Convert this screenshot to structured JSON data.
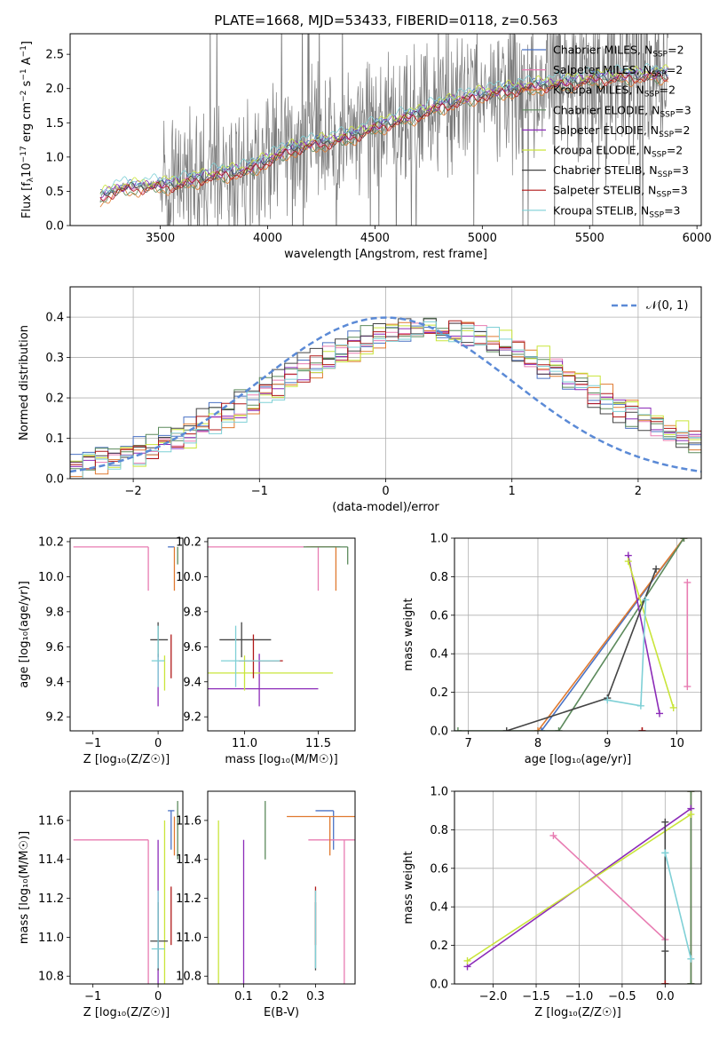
{
  "figure_title": "PLATE=1668, MJD=53433, FIBERID=0118, z=0.563",
  "colors": {
    "chabrier_miles": "#4a72c4",
    "salpeter_miles": "#e87cb2",
    "kroupa_miles": "#e07a30",
    "chabrier_elodie": "#5c8a5c",
    "salpeter_elodie": "#8c2bb8",
    "kroupa_elodie": "#c9e53a",
    "chabrier_stelib": "#444444",
    "salpeter_stelib": "#b01818",
    "kroupa_stelib": "#7fd0d6",
    "data": "#7a7a7a",
    "normal": "#5b8ad6"
  },
  "chart_data": [
    {
      "id": "spectrum",
      "type": "line",
      "title": "PLATE=1668, MJD=53433, FIBERID=0118, z=0.563",
      "xlabel": "wavelength [Angstrom, rest frame]",
      "ylabel_parts": [
        "Flux [f",
        "λ",
        "10",
        "−17",
        " erg cm",
        "−2",
        " s",
        "−1",
        " A",
        "−1",
        "]"
      ],
      "xlim": [
        3080,
        6020
      ],
      "ylim": [
        0,
        2.8
      ],
      "xticks": [
        3500,
        4000,
        4500,
        5000,
        5500,
        6000
      ],
      "xtick_labels": [
        "3500",
        "4000",
        "4500",
        "5000",
        "5500",
        "6000"
      ],
      "yticks": [
        0.0,
        0.5,
        1.0,
        1.5,
        2.0,
        2.5
      ],
      "ytick_labels": [
        "0.0",
        "0.5",
        "1.0",
        "1.5",
        "2.0",
        "2.5"
      ],
      "data_range": [
        3220,
        5870
      ],
      "continuum": [
        [
          3220,
          0.42
        ],
        [
          3300,
          0.55
        ],
        [
          3400,
          0.58
        ],
        [
          3500,
          0.6
        ],
        [
          3600,
          0.63
        ],
        [
          3700,
          0.72
        ],
        [
          3800,
          0.78
        ],
        [
          3900,
          0.82
        ],
        [
          4000,
          0.97
        ],
        [
          4100,
          1.12
        ],
        [
          4200,
          1.2
        ],
        [
          4300,
          1.25
        ],
        [
          4400,
          1.33
        ],
        [
          4500,
          1.45
        ],
        [
          4600,
          1.55
        ],
        [
          4700,
          1.64
        ],
        [
          4800,
          1.76
        ],
        [
          4900,
          1.85
        ],
        [
          5000,
          1.93
        ],
        [
          5100,
          1.98
        ],
        [
          5200,
          2.03
        ],
        [
          5300,
          2.07
        ],
        [
          5400,
          2.1
        ],
        [
          5500,
          2.15
        ],
        [
          5600,
          2.18
        ],
        [
          5700,
          2.2
        ],
        [
          5870,
          2.22
        ]
      ],
      "legend_position": "upper right",
      "series": [
        {
          "name": "Chabrier MILES, N",
          "sub": "SSP",
          "suffix": "=2",
          "color_key": "chabrier_miles",
          "offset": 0.02
        },
        {
          "name": "Salpeter MILES, N",
          "sub": "SSP",
          "suffix": "=2",
          "color_key": "salpeter_miles",
          "offset": -0.03
        },
        {
          "name": "Kroupa MILES, N",
          "sub": "SSP",
          "suffix": "=2",
          "color_key": "kroupa_miles",
          "offset": -0.09
        },
        {
          "name": "Chabrier ELODIE, N",
          "sub": "SSP",
          "suffix": "=3",
          "color_key": "chabrier_elodie",
          "offset": -0.06
        },
        {
          "name": "Salpeter ELODIE, N",
          "sub": "SSP",
          "suffix": "=2",
          "color_key": "salpeter_elodie",
          "offset": 0.01
        },
        {
          "name": "Kroupa ELODIE, N",
          "sub": "SSP",
          "suffix": "=2",
          "color_key": "kroupa_elodie",
          "offset": 0.05
        },
        {
          "name": "Chabrier STELIB, N",
          "sub": "SSP",
          "suffix": "=3",
          "color_key": "chabrier_stelib",
          "offset": -0.02
        },
        {
          "name": "Salpeter STELIB, N",
          "sub": "SSP",
          "suffix": "=3",
          "color_key": "salpeter_stelib",
          "offset": -0.05
        },
        {
          "name": "Kroupa STELIB, N",
          "sub": "SSP",
          "suffix": "=3",
          "color_key": "kroupa_stelib",
          "offset": 0.08
        }
      ]
    },
    {
      "id": "residuals",
      "type": "histogram",
      "xlabel": "(data-model)/error",
      "ylabel": "Normed distribution",
      "xlim": [
        -2.5,
        2.5
      ],
      "ylim": [
        0,
        0.475
      ],
      "xticks": [
        -2,
        -1,
        0,
        1,
        2
      ],
      "xtick_labels": [
        "−2",
        "−1",
        "0",
        "1",
        "2"
      ],
      "yticks": [
        0.0,
        0.1,
        0.2,
        0.3,
        0.4
      ],
      "ytick_labels": [
        "0.0",
        "0.1",
        "0.2",
        "0.3",
        "0.4"
      ],
      "bin_width": 0.1,
      "bin_start": -2.5,
      "reference_label": "𝒩(0, 1)",
      "hist_center": 0.35,
      "hist_sigma": 1.25,
      "hist_amp": 0.37,
      "grid": true
    },
    {
      "id": "age_Z",
      "type": "scatter",
      "xlabel": "Z [log₁₀(Z/Z☉)]",
      "ylabel": "age  [log₁₀(age/yr)]",
      "xlim": [
        -1.35,
        0.38
      ],
      "ylim": [
        9.12,
        10.22
      ],
      "xticks": [
        -1,
        0
      ],
      "xtick_labels": [
        "−1",
        "0"
      ],
      "yticks": [
        9.2,
        9.4,
        9.6,
        9.8,
        10.0,
        10.2
      ],
      "ytick_labels": [
        "9.2",
        "9.4",
        "9.6",
        "9.8",
        "10.0",
        "10.2"
      ]
    },
    {
      "id": "age_mass",
      "type": "scatter",
      "xlabel": "mass [log₁₀(M/M☉)]",
      "xlim": [
        10.75,
        11.75
      ],
      "ylim": [
        9.12,
        10.22
      ],
      "xticks": [
        11.0,
        11.5
      ],
      "xtick_labels": [
        "11.0",
        "11.5"
      ],
      "yticks": [
        9.2,
        9.4,
        9.6,
        9.8,
        10.0,
        10.2
      ],
      "ytick_labels": [
        "9.2",
        "9.4",
        "9.6",
        "9.8",
        "10.0",
        "10.2"
      ]
    },
    {
      "id": "weight_age",
      "type": "line",
      "xlabel": "age  [log₁₀(age/yr)]",
      "ylabel": "mass weight",
      "xlim": [
        6.8,
        10.35
      ],
      "ylim": [
        0,
        1.0
      ],
      "xticks": [
        7,
        8,
        9,
        10
      ],
      "xtick_labels": [
        "7",
        "8",
        "9",
        "10"
      ],
      "yticks": [
        0.0,
        0.2,
        0.4,
        0.6,
        0.8,
        1.0
      ],
      "ytick_labels": [
        "0.0",
        "0.2",
        "0.4",
        "0.6",
        "0.8",
        "1.0"
      ],
      "grid": true
    },
    {
      "id": "mass_Z",
      "type": "scatter",
      "xlabel": "Z [log₁₀(Z/Z☉)]",
      "ylabel": "mass [log₁₀(M/M☉)]",
      "xlim": [
        -1.35,
        0.38
      ],
      "ylim": [
        10.76,
        11.75
      ],
      "xticks": [
        -1,
        0
      ],
      "xtick_labels": [
        "−1",
        "0"
      ],
      "yticks": [
        10.8,
        11.0,
        11.2,
        11.4,
        11.6
      ],
      "ytick_labels": [
        "10.8",
        "11.0",
        "11.2",
        "11.4",
        "11.6"
      ]
    },
    {
      "id": "mass_ebv",
      "type": "scatter",
      "xlabel": "E(B-V)",
      "xlim": [
        0.0,
        0.41
      ],
      "ylim": [
        10.76,
        11.75
      ],
      "xticks": [
        0.1,
        0.2,
        0.3
      ],
      "xtick_labels": [
        "0.1",
        "0.2",
        "0.3"
      ],
      "yticks": [
        10.8,
        11.0,
        11.2,
        11.4,
        11.6
      ],
      "ytick_labels": [
        "10.8",
        "11.0",
        "11.2",
        "11.4",
        "11.6"
      ]
    },
    {
      "id": "weight_Z",
      "type": "line",
      "xlabel": "Z [log₁₀(Z/Z☉)]",
      "ylabel": "mass weight",
      "xlim": [
        -2.45,
        0.42
      ],
      "ylim": [
        0,
        1.0
      ],
      "xticks": [
        -2.0,
        -1.5,
        -1.0,
        -0.5,
        0.0
      ],
      "xtick_labels": [
        "−2.0",
        "−1.5",
        "−1.0",
        "−0.5",
        "0.0"
      ],
      "yticks": [
        0.0,
        0.2,
        0.4,
        0.6,
        0.8,
        1.0
      ],
      "ytick_labels": [
        "0.0",
        "0.2",
        "0.4",
        "0.6",
        "0.8",
        "1.0"
      ],
      "grid": true
    }
  ],
  "fits": [
    {
      "color_key": "chabrier_miles",
      "Z": 0.2,
      "Zerr": [
        0.05,
        0.05
      ],
      "age": 10.17,
      "ageErr": [
        0.0,
        0.0
      ],
      "mass": 11.65,
      "massErr": [
        0.2,
        0.0
      ],
      "ebv": 0.35,
      "ebvErr": [
        0.05,
        0.0
      ],
      "ssp_age": [
        8.05,
        10.1
      ],
      "ssp_w": [
        0.0,
        1.0
      ],
      "ssp_Z": [
        0.3,
        0.3
      ],
      "ssp_zw": [
        0.0,
        1.0
      ]
    },
    {
      "color_key": "salpeter_miles",
      "Z": -0.15,
      "Zerr": [
        1.15,
        0.0
      ],
      "age": 10.17,
      "ageErr": [
        0.25,
        0.0
      ],
      "mass": 11.5,
      "massErr": [
        1.2,
        0.0
      ],
      "ebv": 0.38,
      "ebvErr": [
        0.1,
        0.1
      ],
      "ssp_age": [
        10.15,
        10.15
      ],
      "ssp_w": [
        0.23,
        0.77
      ],
      "ssp_Z": [
        -1.3,
        0.0
      ],
      "ssp_zw": [
        0.77,
        0.23
      ]
    },
    {
      "color_key": "kroupa_miles",
      "Z": 0.25,
      "Zerr": [
        0.0,
        0.0
      ],
      "age": 10.17,
      "ageErr": [
        0.25,
        0.0
      ],
      "mass": 11.62,
      "massErr": [
        0.2,
        0.0
      ],
      "ebv": 0.34,
      "ebvErr": [
        0.12,
        0.08
      ],
      "ssp_age": [
        8.0,
        10.1
      ],
      "ssp_w": [
        0.0,
        1.0
      ],
      "ssp_Z": [
        0.3,
        0.3
      ],
      "ssp_zw": [
        0.0,
        1.0
      ]
    },
    {
      "color_key": "chabrier_elodie",
      "Z": 0.3,
      "Zerr": [
        0.0,
        0.0
      ],
      "age": 10.17,
      "ageErr": [
        0.1,
        0.0
      ],
      "mass": 11.7,
      "massErr": [
        0.3,
        0.0
      ],
      "ebv": 0.16,
      "ebvErr": [
        0.0,
        0.0
      ],
      "ssp_age": [
        6.85,
        8.3,
        10.1
      ],
      "ssp_w": [
        0.0,
        0.0,
        1.0
      ],
      "ssp_Z": [
        0.3,
        0.3,
        0.3
      ],
      "ssp_zw": [
        0.0,
        0.0,
        1.0
      ]
    },
    {
      "color_key": "salpeter_elodie",
      "Z": 0.0,
      "Zerr": [
        0.0,
        0.0
      ],
      "age": 9.36,
      "ageErr": [
        0.1,
        0.2
      ],
      "mass": 11.1,
      "massErr": [
        0.5,
        0.4
      ],
      "ebv": 0.1,
      "ebvErr": [
        0.0,
        0.0
      ],
      "ssp_age": [
        9.3,
        9.75
      ],
      "ssp_w": [
        0.91,
        0.09
      ],
      "ssp_Z": [
        -2.3,
        0.3
      ],
      "ssp_zw": [
        0.09,
        0.91
      ]
    },
    {
      "color_key": "kroupa_elodie",
      "Z": 0.1,
      "Zerr": [
        0.0,
        0.0
      ],
      "age": 9.45,
      "ageErr": [
        0.1,
        0.1
      ],
      "mass": 11.0,
      "massErr": [
        0.3,
        0.6
      ],
      "ebv": 0.03,
      "ebvErr": [
        0.0,
        0.0
      ],
      "ssp_age": [
        9.3,
        9.95
      ],
      "ssp_w": [
        0.88,
        0.12
      ],
      "ssp_Z": [
        -2.3,
        0.3
      ],
      "ssp_zw": [
        0.12,
        0.88
      ]
    },
    {
      "color_key": "chabrier_stelib",
      "Z": 0.0,
      "Zerr": [
        0.12,
        0.15
      ],
      "age": 9.64,
      "ageErr": [
        0.1,
        0.1
      ],
      "mass": 10.98,
      "massErr": [
        0.15,
        0.2
      ],
      "ebv": 0.3,
      "ebvErr": [
        0.0,
        0.0
      ],
      "ssp_age": [
        7.55,
        9.0,
        9.7
      ],
      "ssp_w": [
        0.0,
        0.17,
        0.84
      ],
      "ssp_Z": [
        0.0,
        0.0,
        0.0
      ],
      "ssp_zw": [
        0.0,
        0.17,
        0.84
      ]
    },
    {
      "color_key": "salpeter_stelib",
      "Z": 0.2,
      "Zerr": [
        0.0,
        0.0
      ],
      "age": 9.52,
      "ageErr": [
        0.1,
        0.15
      ],
      "mass": 11.06,
      "massErr": [
        0.1,
        0.2
      ],
      "ebv": 0.3,
      "ebvErr": [
        0.0,
        0.0
      ],
      "ssp_age": [
        9.5,
        9.5
      ],
      "ssp_w": [
        0.0,
        0.0
      ],
      "ssp_Z": [
        0.0,
        0.0
      ],
      "ssp_zw": [
        0.0,
        0.0
      ]
    },
    {
      "color_key": "kroupa_stelib",
      "Z": 0.0,
      "Zerr": [
        0.1,
        0.1
      ],
      "age": 9.52,
      "ageErr": [
        0.15,
        0.2
      ],
      "mass": 10.94,
      "massErr": [
        0.1,
        0.3
      ],
      "ebv": 0.3,
      "ebvErr": [
        0.0,
        0.0
      ],
      "ssp_age": [
        9.0,
        9.48,
        9.55
      ],
      "ssp_w": [
        0.16,
        0.13,
        0.68
      ],
      "ssp_Z": [
        0.0,
        0.3,
        0.0
      ],
      "ssp_zw": [
        0.68,
        0.13,
        0.68
      ]
    }
  ]
}
